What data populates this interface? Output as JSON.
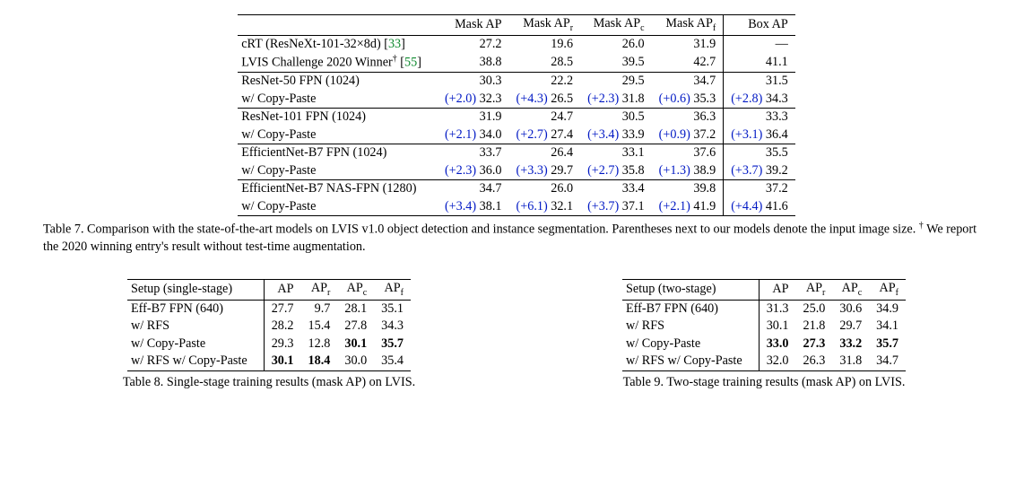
{
  "table7": {
    "headers": [
      "Mask AP",
      "Mask AP_r",
      "Mask AP_c",
      "Mask AP_f",
      "Box AP"
    ],
    "rows": [
      {
        "label": {
          "pre": "cRT (ResNeXt-101-32×8d) [",
          "cite": "33",
          "post": "]"
        },
        "vals": [
          "27.2",
          "19.6",
          "26.0",
          "31.9",
          "—"
        ],
        "sep_top": true
      },
      {
        "label": {
          "pre": "LVIS Challenge 2020 Winner",
          "dagger": true,
          "post": " [",
          "cite": "55",
          "post2": "]"
        },
        "vals": [
          "38.8",
          "28.5",
          "39.5",
          "42.7",
          "41.1"
        ]
      },
      {
        "label": {
          "text": "ResNet-50 FPN (1024)"
        },
        "vals": [
          "30.3",
          "22.2",
          "29.5",
          "34.7",
          "31.5"
        ],
        "sep_top": true
      },
      {
        "label": {
          "text": "w/ Copy-Paste"
        },
        "deltas": [
          "(+2.0)",
          "(+4.3)",
          "(+2.3)",
          "(+0.6)",
          "(+2.8)"
        ],
        "vals": [
          "32.3",
          "26.5",
          "31.8",
          "35.3",
          "34.3"
        ]
      },
      {
        "label": {
          "text": "ResNet-101 FPN (1024)"
        },
        "vals": [
          "31.9",
          "24.7",
          "30.5",
          "36.3",
          "33.3"
        ],
        "sep_top": true
      },
      {
        "label": {
          "text": "w/ Copy-Paste"
        },
        "deltas": [
          "(+2.1)",
          "(+2.7)",
          "(+3.4)",
          "(+0.9)",
          "(+3.1)"
        ],
        "vals": [
          "34.0",
          "27.4",
          "33.9",
          "37.2",
          "36.4"
        ]
      },
      {
        "label": {
          "text": "EfficientNet-B7 FPN (1024)"
        },
        "vals": [
          "33.7",
          "26.4",
          "33.1",
          "37.6",
          "35.5"
        ],
        "sep_top": true
      },
      {
        "label": {
          "text": "w/ Copy-Paste"
        },
        "deltas": [
          "(+2.3)",
          "(+3.3)",
          "(+2.7)",
          "(+1.3)",
          "(+3.7)"
        ],
        "vals": [
          "36.0",
          "29.7",
          "35.8",
          "38.9",
          "39.2"
        ]
      },
      {
        "label": {
          "text": "EfficientNet-B7 NAS-FPN (1280)"
        },
        "vals": [
          "34.7",
          "26.0",
          "33.4",
          "39.8",
          "37.2"
        ],
        "sep_top": true
      },
      {
        "label": {
          "text": "w/ Copy-Paste"
        },
        "deltas": [
          "(+3.4)",
          "(+6.1)",
          "(+3.7)",
          "(+2.1)",
          "(+4.4)"
        ],
        "vals": [
          "38.1",
          "32.1",
          "37.1",
          "41.9",
          "41.6"
        ],
        "bot": true
      }
    ],
    "caption_prefix": "Table 7.",
    "caption_body": " Comparison with the state-of-the-art models on LVIS v1.0 object detection and instance segmentation. Parentheses next to our models denote the input image size. ",
    "caption_dagger_note": " We report the 2020 winning entry's result without test-time augmentation."
  },
  "table8": {
    "header_setup": "Setup (single-stage)",
    "headers": [
      "AP",
      "AP_r",
      "AP_c",
      "AP_f"
    ],
    "rows": [
      {
        "label": "Eff-B7 FPN (640)",
        "vals": [
          "27.7",
          "9.7",
          "28.1",
          "35.1"
        ],
        "bold": [
          0,
          0,
          0,
          0
        ]
      },
      {
        "label": "w/ RFS",
        "vals": [
          "28.2",
          "15.4",
          "27.8",
          "34.3"
        ],
        "bold": [
          0,
          0,
          0,
          0
        ]
      },
      {
        "label": "w/ Copy-Paste",
        "vals": [
          "29.3",
          "12.8",
          "30.1",
          "35.7"
        ],
        "bold": [
          0,
          0,
          1,
          1
        ]
      },
      {
        "label": "w/ RFS w/ Copy-Paste",
        "vals": [
          "30.1",
          "18.4",
          "30.0",
          "35.4"
        ],
        "bold": [
          1,
          1,
          0,
          0
        ]
      }
    ],
    "caption": "Table 8. Single-stage training results (mask AP) on LVIS."
  },
  "table9": {
    "header_setup": "Setup (two-stage)",
    "headers": [
      "AP",
      "AP_r",
      "AP_c",
      "AP_f"
    ],
    "rows": [
      {
        "label": "Eff-B7 FPN (640)",
        "vals": [
          "31.3",
          "25.0",
          "30.6",
          "34.9"
        ],
        "bold": [
          0,
          0,
          0,
          0
        ]
      },
      {
        "label": "w/ RFS",
        "vals": [
          "30.1",
          "21.8",
          "29.7",
          "34.1"
        ],
        "bold": [
          0,
          0,
          0,
          0
        ]
      },
      {
        "label": "w/ Copy-Paste",
        "vals": [
          "33.0",
          "27.3",
          "33.2",
          "35.7"
        ],
        "bold": [
          1,
          1,
          1,
          1
        ]
      },
      {
        "label": "w/ RFS w/ Copy-Paste",
        "vals": [
          "32.0",
          "26.3",
          "31.8",
          "34.7"
        ],
        "bold": [
          0,
          0,
          0,
          0
        ]
      }
    ],
    "caption": "Table 9. Two-stage training results (mask AP) on LVIS."
  },
  "colors": {
    "delta": "#0018c4",
    "cite": "#0f8a2f"
  }
}
